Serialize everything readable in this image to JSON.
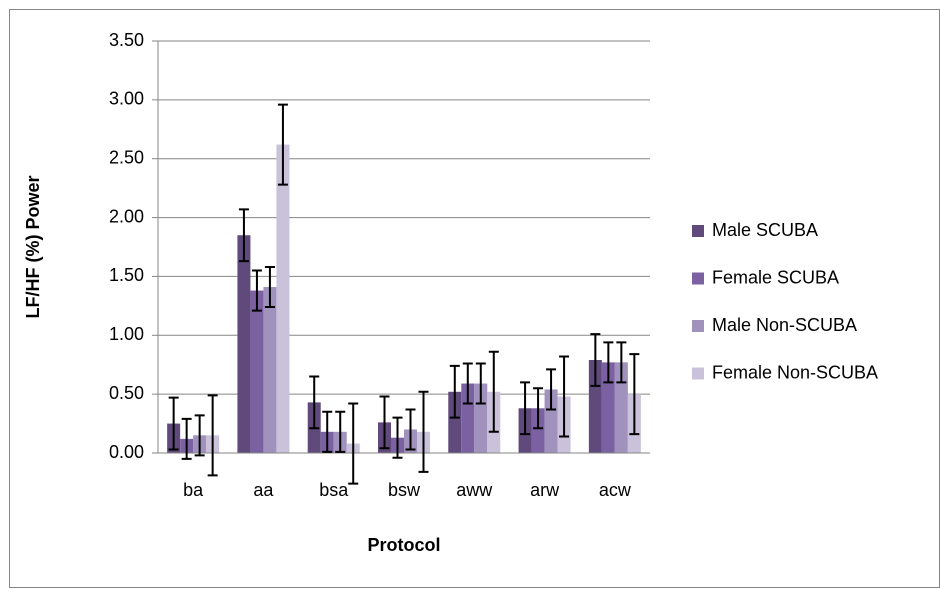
{
  "chart_data": {
    "type": "bar",
    "y_label": "LF/HF (%) Power",
    "x_label": "Protocol",
    "categories": [
      "ba",
      "aa",
      "bsa",
      "bsw",
      "aww",
      "arw",
      "acw"
    ],
    "series": [
      {
        "name": "Male SCUBA",
        "color": "#5f4a7b",
        "values": [
          0.25,
          1.85,
          0.43,
          0.26,
          0.52,
          0.38,
          0.79
        ],
        "errors": [
          0.22,
          0.22,
          0.22,
          0.22,
          0.22,
          0.22,
          0.22
        ]
      },
      {
        "name": "Female SCUBA",
        "color": "#7b61a1",
        "values": [
          0.12,
          1.38,
          0.18,
          0.13,
          0.59,
          0.38,
          0.77
        ],
        "errors": [
          0.17,
          0.17,
          0.17,
          0.17,
          0.17,
          0.17,
          0.17
        ]
      },
      {
        "name": "Male Non-SCUBA",
        "color": "#a092bd",
        "values": [
          0.15,
          1.41,
          0.18,
          0.2,
          0.59,
          0.54,
          0.77
        ],
        "errors": [
          0.17,
          0.17,
          0.17,
          0.17,
          0.17,
          0.17,
          0.17
        ]
      },
      {
        "name": "Female Non-SCUBA",
        "color": "#cac1da",
        "values": [
          0.15,
          2.62,
          0.08,
          0.18,
          0.52,
          0.48,
          0.5
        ],
        "errors": [
          0.34,
          0.34,
          0.34,
          0.34,
          0.34,
          0.34,
          0.34
        ]
      }
    ],
    "ylim": [
      0,
      3.5
    ],
    "yticks": [
      {
        "value": 0,
        "label": "0.00"
      },
      {
        "value": 0.5,
        "label": "0.50"
      },
      {
        "value": 1,
        "label": "1.00"
      },
      {
        "value": 1.5,
        "label": "1.50"
      },
      {
        "value": 2,
        "label": "2.00"
      },
      {
        "value": 2.5,
        "label": "2.50"
      },
      {
        "value": 3,
        "label": "3.00"
      },
      {
        "value": 3.5,
        "label": "3.50"
      }
    ],
    "grid": true,
    "legend": "right"
  }
}
